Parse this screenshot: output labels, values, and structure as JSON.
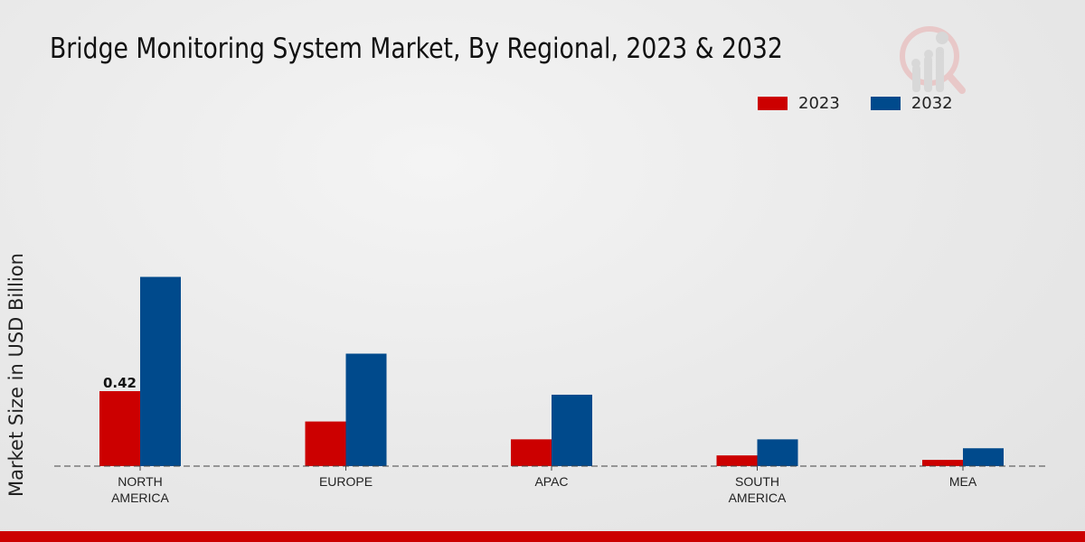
{
  "chart_data": {
    "type": "bar",
    "title": "Bridge Monitoring System Market, By Regional, 2023 & 2032",
    "xlabel": "",
    "ylabel": "Market Size in USD Billion",
    "categories": [
      "NORTH\nAMERICA",
      "EUROPE",
      "APAC",
      "SOUTH\nAMERICA",
      "MEA"
    ],
    "series": [
      {
        "name": "2023",
        "color": "#cc0000",
        "values": [
          0.42,
          0.25,
          0.15,
          0.06,
          0.035
        ]
      },
      {
        "name": "2032",
        "color": "#004a8c",
        "values": [
          1.06,
          0.63,
          0.4,
          0.15,
          0.1
        ]
      }
    ],
    "data_labels": [
      {
        "series": "2023",
        "category_index": 0,
        "text": "0.42"
      }
    ],
    "ylim": [
      0,
      1.3
    ],
    "grid": false,
    "legend_position": "top-right"
  }
}
